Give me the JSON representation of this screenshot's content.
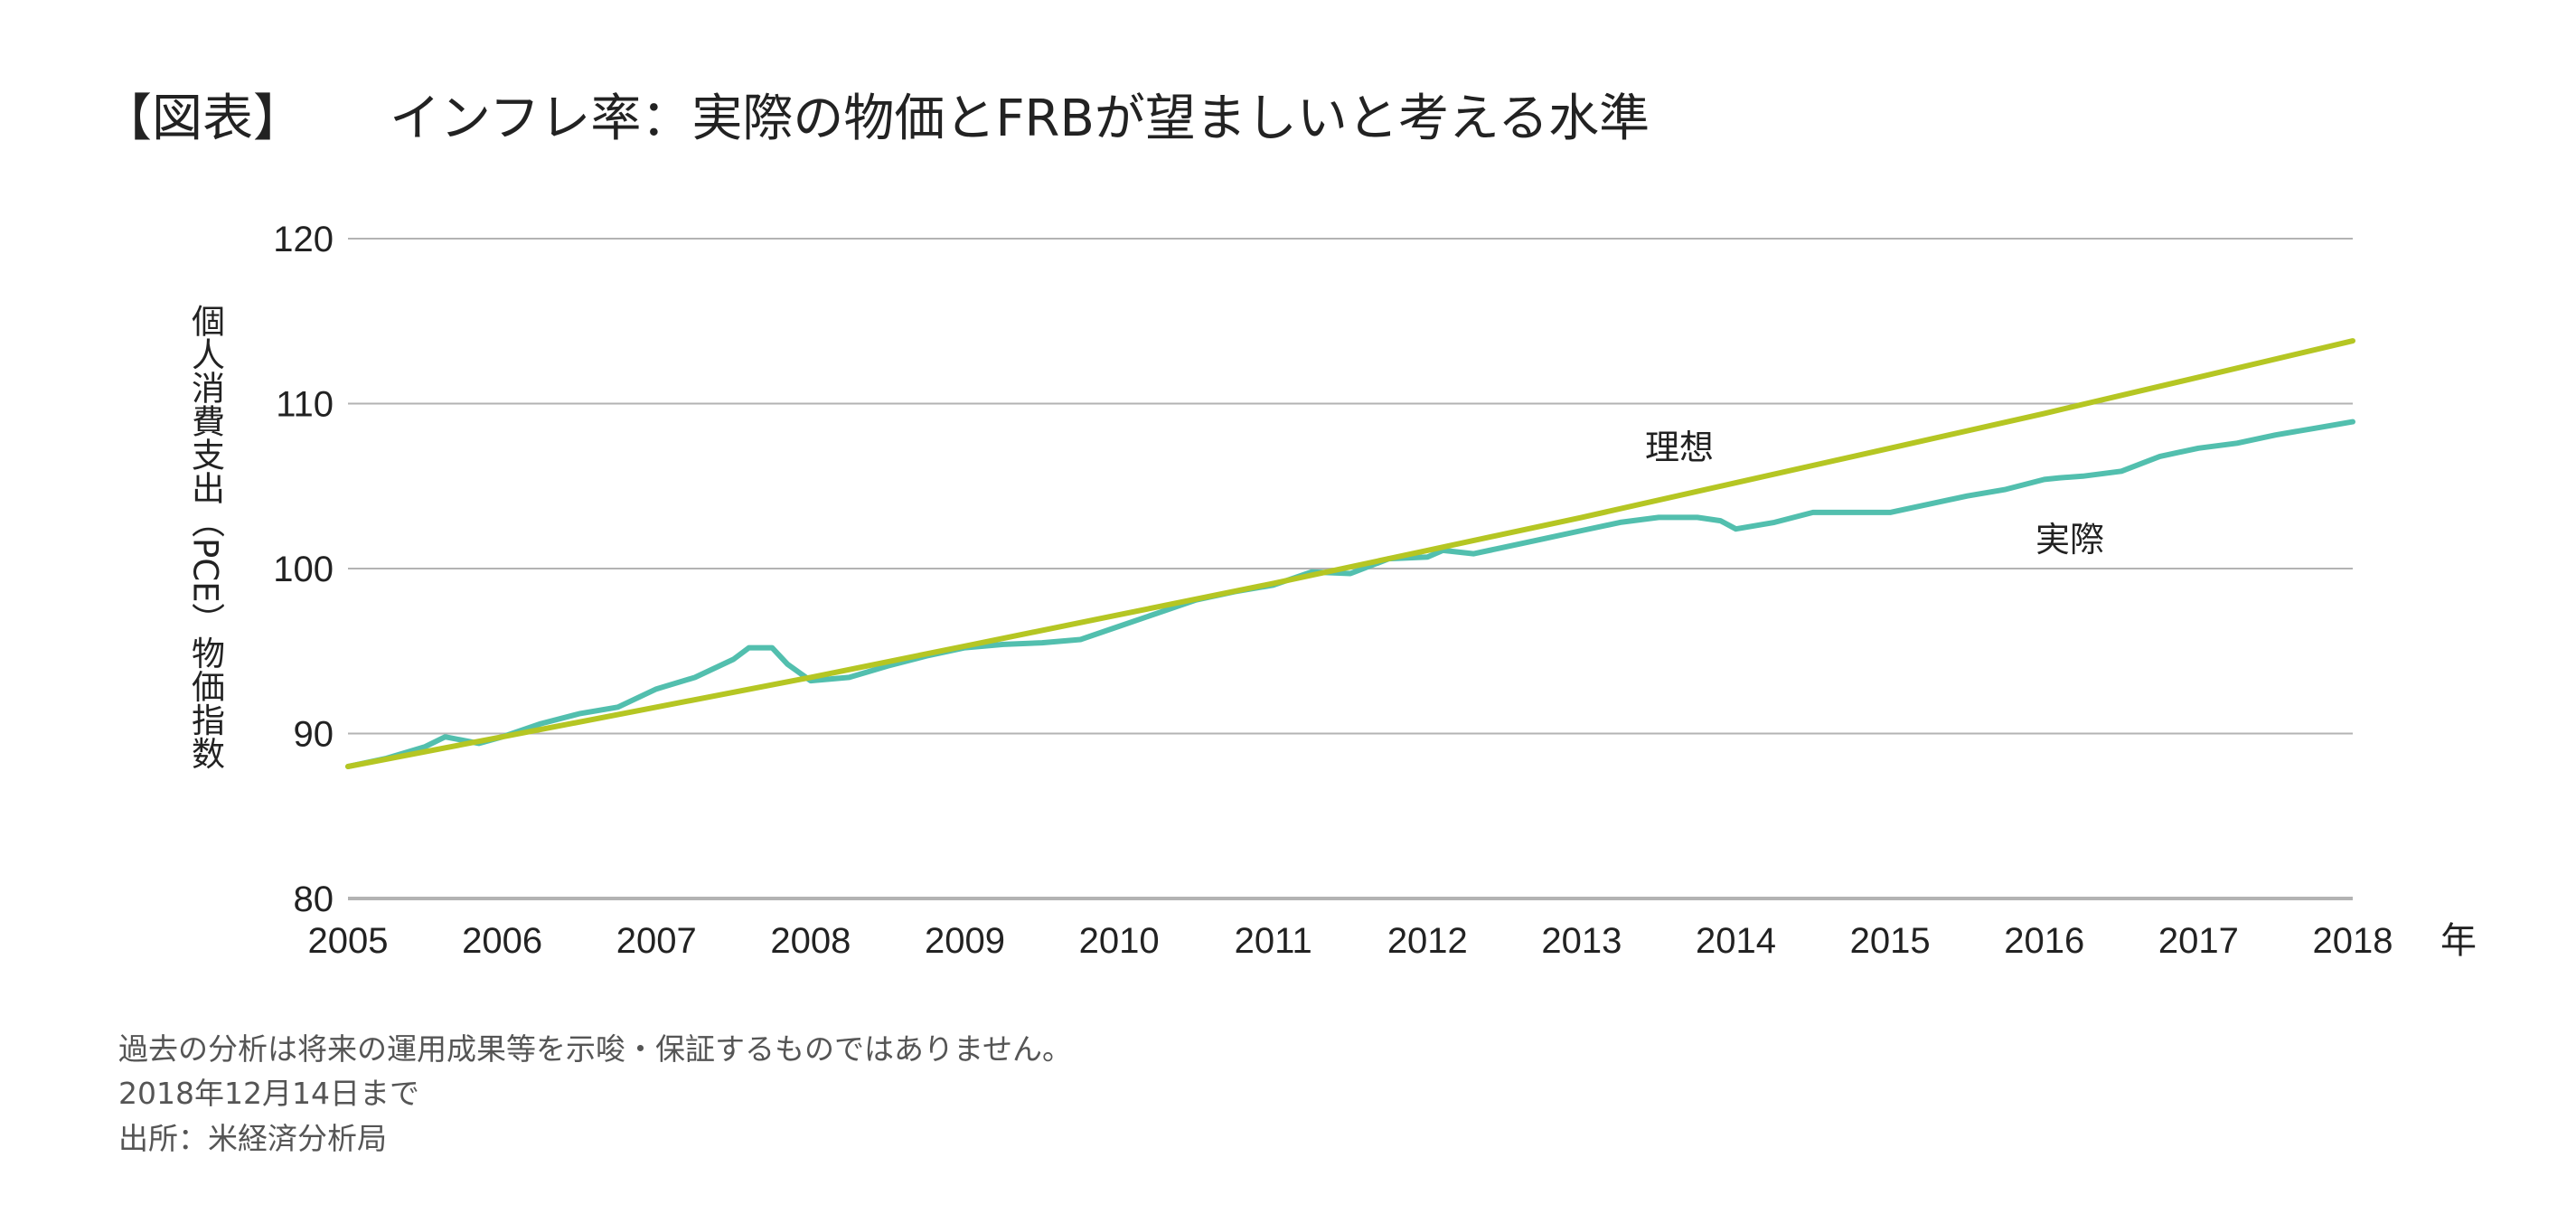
{
  "title": {
    "prefix": "【図表】",
    "text": "インフレ率：実際の物価とFRBが望ましいと考える水準"
  },
  "footer": {
    "disclaimer": "過去の分析は将来の運用成果等を示唆・保証するものではありません。",
    "as_of": "2018年12月14日まで",
    "source": "出所：米経済分析局"
  },
  "chart_data": {
    "type": "line",
    "title": "インフレ率：実際の物価とFRBが望ましいと考える水準",
    "ylabel": "個人消費支出（PCE）物価指数",
    "xlabel": "年",
    "xlim": [
      2005,
      2018
    ],
    "ylim": [
      80,
      120
    ],
    "yticks": [
      "80",
      "90",
      "100",
      "110",
      "120"
    ],
    "xticks": [
      "2005",
      "2006",
      "2007",
      "2008",
      "2009",
      "2010",
      "2011",
      "2012",
      "2013",
      "2014",
      "2015",
      "2016",
      "2017",
      "2018"
    ],
    "grid": "horizontal",
    "colors": {
      "ideal": "#b5c623",
      "actual": "#52bfae",
      "grid": "#b3b3b3"
    },
    "series": [
      {
        "name": "理想",
        "x": [
          2005,
          2006,
          2007,
          2008,
          2009,
          2010,
          2011,
          2012,
          2013,
          2014,
          2015,
          2016,
          2017,
          2018
        ],
        "y": [
          88.0,
          89.8,
          91.6,
          93.4,
          95.3,
          97.2,
          99.1,
          101.1,
          103.1,
          105.2,
          107.3,
          109.4,
          111.6,
          113.8
        ]
      },
      {
        "name": "実際",
        "x": [
          2005,
          2005.25,
          2005.5,
          2005.63,
          2005.85,
          2006,
          2006.25,
          2006.5,
          2006.75,
          2007,
          2007.25,
          2007.5,
          2007.6,
          2007.75,
          2007.85,
          2008,
          2008.25,
          2008.5,
          2008.75,
          2009,
          2009.25,
          2009.5,
          2009.75,
          2010,
          2010.25,
          2010.5,
          2010.75,
          2011,
          2011.25,
          2011.5,
          2011.75,
          2012,
          2012.1,
          2012.3,
          2012.5,
          2012.75,
          2013,
          2013.25,
          2013.5,
          2013.75,
          2013.9,
          2014,
          2014.25,
          2014.5,
          2014.75,
          2015,
          2015.25,
          2015.5,
          2015.75,
          2016,
          2016.1,
          2016.25,
          2016.5,
          2016.75,
          2017,
          2017.25,
          2017.5,
          2017.75,
          2018
        ],
        "y": [
          88.0,
          88.5,
          89.2,
          89.8,
          89.4,
          89.8,
          90.6,
          91.2,
          91.6,
          92.7,
          93.4,
          94.5,
          95.2,
          95.2,
          94.2,
          93.2,
          93.4,
          94.1,
          94.7,
          95.2,
          95.4,
          95.5,
          95.7,
          96.5,
          97.3,
          98.1,
          98.6,
          99.0,
          99.8,
          99.7,
          100.6,
          100.7,
          101.1,
          100.9,
          101.3,
          101.8,
          102.3,
          102.8,
          103.1,
          103.1,
          102.9,
          102.4,
          102.8,
          103.4,
          103.4,
          103.4,
          103.9,
          104.4,
          104.8,
          105.4,
          105.5,
          105.6,
          105.9,
          106.8,
          107.3,
          107.6,
          108.1,
          108.5,
          108.9
        ]
      }
    ]
  }
}
